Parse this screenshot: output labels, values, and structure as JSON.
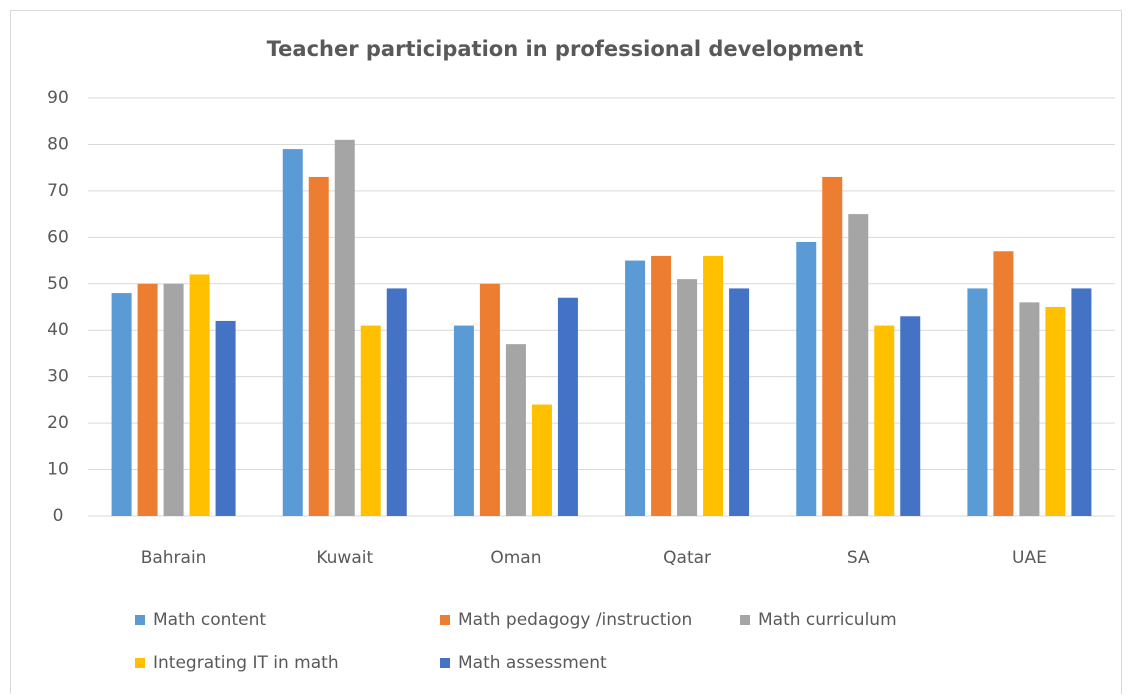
{
  "chart_data": {
    "type": "bar",
    "title": "Teacher participation in professional development",
    "categories": [
      "Bahrain",
      "Kuwait",
      "Oman",
      "Qatar",
      "SA",
      "UAE"
    ],
    "series": [
      {
        "name": "Math content",
        "color": "#5b9bd5",
        "values": [
          48,
          79,
          41,
          55,
          59,
          49
        ]
      },
      {
        "name": "Math pedagogy /instruction",
        "color": "#ed7d31",
        "values": [
          50,
          73,
          50,
          56,
          73,
          57
        ]
      },
      {
        "name": "Math curriculum",
        "color": "#a5a5a5",
        "values": [
          50,
          81,
          37,
          51,
          65,
          46
        ]
      },
      {
        "name": "Integrating IT in math",
        "color": "#ffc000",
        "values": [
          52,
          41,
          24,
          56,
          41,
          45
        ]
      },
      {
        "name": "Math assessment",
        "color": "#4472c4",
        "values": [
          42,
          49,
          47,
          49,
          43,
          49
        ]
      }
    ],
    "ylim": [
      0,
      90
    ],
    "yticks": [
      0,
      10,
      20,
      30,
      40,
      50,
      60,
      70,
      80,
      90
    ],
    "grid": true,
    "legend": "bottom"
  }
}
